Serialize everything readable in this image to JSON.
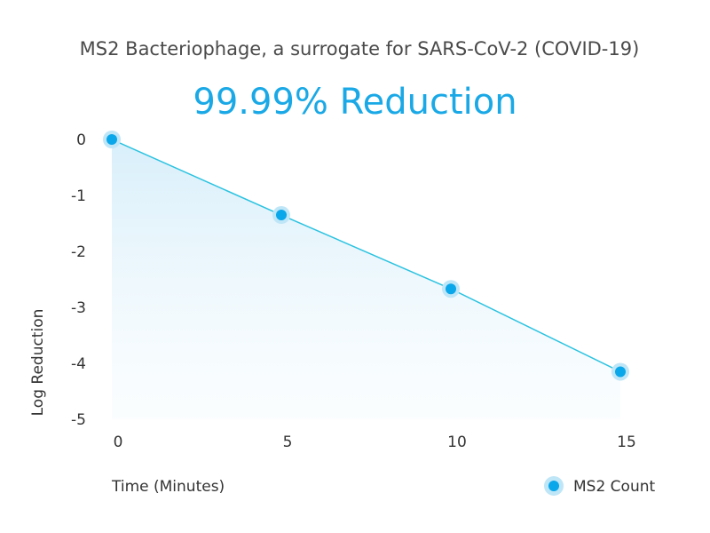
{
  "chart_data": {
    "type": "line",
    "title": "99.99% Reduction",
    "subtitle": "MS2 Bacteriophage, a surrogate for SARS-CoV-2 (COVID-19)",
    "xlabel": "Time (Minutes)",
    "ylabel": "Log Reduction",
    "x_ticks": [
      "0",
      "5",
      "10",
      "15"
    ],
    "y_ticks": [
      "0",
      "-1",
      "-2",
      "-3",
      "-4",
      "-5"
    ],
    "xlim": [
      0,
      15
    ],
    "ylim": [
      -5,
      0
    ],
    "grid": false,
    "legend_position": "bottom-right",
    "series": [
      {
        "name": "MS2 Count",
        "color": "#0aa7ea",
        "x": [
          0,
          5,
          10,
          15
        ],
        "y": [
          0,
          -1.35,
          -2.67,
          -4.15
        ]
      }
    ],
    "colors": {
      "title": "#1aa9e6",
      "line": "#2cc3e0",
      "marker": "#0aa7ea",
      "marker_halo": "#bfe6f7",
      "area_top": "#d8eefa",
      "text": "#333333",
      "subtitle": "#4a4a4a"
    }
  }
}
